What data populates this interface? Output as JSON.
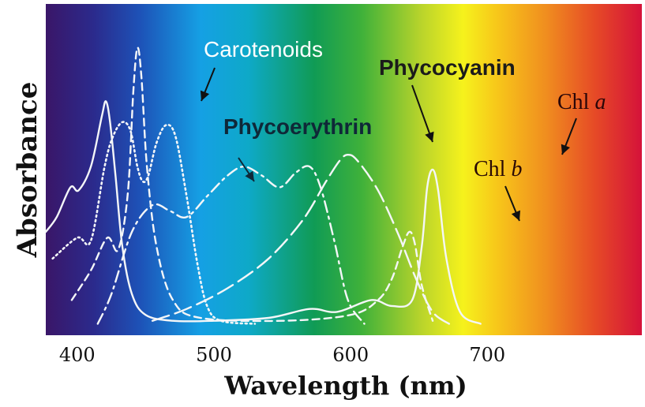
{
  "chart_data": {
    "type": "line",
    "xlabel": "Wavelength (nm)",
    "ylabel": "Absorbance",
    "xlim": [
      377,
      813
    ],
    "ylim": [
      0,
      1
    ],
    "x_ticks": [
      {
        "value": 400,
        "label": "400"
      },
      {
        "value": 500,
        "label": "500"
      },
      {
        "value": 600,
        "label": "600"
      },
      {
        "value": 700,
        "label": "700"
      }
    ],
    "background": "visible-spectrum gradient",
    "series": [
      {
        "name": "Chl a",
        "line_style": "solid",
        "points": [
          [
            377,
            0.33
          ],
          [
            385,
            0.38
          ],
          [
            395,
            0.48
          ],
          [
            401,
            0.47
          ],
          [
            410,
            0.55
          ],
          [
            418,
            0.72
          ],
          [
            421,
            0.77
          ],
          [
            424,
            0.7
          ],
          [
            428,
            0.52
          ],
          [
            433,
            0.28
          ],
          [
            440,
            0.12
          ],
          [
            450,
            0.05
          ],
          [
            470,
            0.03
          ],
          [
            500,
            0.03
          ],
          [
            540,
            0.04
          ],
          [
            570,
            0.07
          ],
          [
            590,
            0.06
          ],
          [
            615,
            0.1
          ],
          [
            630,
            0.08
          ],
          [
            645,
            0.1
          ],
          [
            652,
            0.28
          ],
          [
            656,
            0.48
          ],
          [
            660,
            0.54
          ],
          [
            664,
            0.47
          ],
          [
            670,
            0.24
          ],
          [
            680,
            0.06
          ],
          [
            695,
            0.02
          ]
        ]
      },
      {
        "name": "Chl b",
        "line_style": "dashed",
        "points": [
          [
            396,
            0.1
          ],
          [
            410,
            0.2
          ],
          [
            422,
            0.31
          ],
          [
            430,
            0.27
          ],
          [
            437,
            0.46
          ],
          [
            441,
            0.8
          ],
          [
            444,
            0.95
          ],
          [
            447,
            0.85
          ],
          [
            451,
            0.55
          ],
          [
            458,
            0.28
          ],
          [
            470,
            0.1
          ],
          [
            490,
            0.04
          ],
          [
            550,
            0.03
          ],
          [
            600,
            0.05
          ],
          [
            620,
            0.1
          ],
          [
            630,
            0.17
          ],
          [
            638,
            0.28
          ],
          [
            643,
            0.33
          ],
          [
            647,
            0.29
          ],
          [
            652,
            0.15
          ],
          [
            660,
            0.03
          ]
        ]
      },
      {
        "name": "Carotenoids",
        "line_style": "dotted",
        "points": [
          [
            382,
            0.24
          ],
          [
            400,
            0.31
          ],
          [
            410,
            0.3
          ],
          [
            420,
            0.55
          ],
          [
            426,
            0.65
          ],
          [
            433,
            0.7
          ],
          [
            439,
            0.67
          ],
          [
            444,
            0.55
          ],
          [
            448,
            0.5
          ],
          [
            452,
            0.52
          ],
          [
            458,
            0.63
          ],
          [
            465,
            0.69
          ],
          [
            472,
            0.65
          ],
          [
            480,
            0.45
          ],
          [
            488,
            0.22
          ],
          [
            495,
            0.08
          ],
          [
            505,
            0.03
          ],
          [
            530,
            0.02
          ]
        ]
      },
      {
        "name": "Phycoerythrin",
        "line_style": "dash-dot",
        "points": [
          [
            415,
            0.02
          ],
          [
            425,
            0.12
          ],
          [
            440,
            0.33
          ],
          [
            455,
            0.42
          ],
          [
            468,
            0.4
          ],
          [
            480,
            0.38
          ],
          [
            495,
            0.45
          ],
          [
            510,
            0.52
          ],
          [
            522,
            0.55
          ],
          [
            535,
            0.52
          ],
          [
            548,
            0.48
          ],
          [
            560,
            0.53
          ],
          [
            570,
            0.55
          ],
          [
            578,
            0.48
          ],
          [
            588,
            0.3
          ],
          [
            598,
            0.1
          ],
          [
            610,
            0.02
          ]
        ]
      },
      {
        "name": "Phycocyanin",
        "line_style": "long-dash",
        "points": [
          [
            455,
            0.03
          ],
          [
            480,
            0.07
          ],
          [
            510,
            0.14
          ],
          [
            540,
            0.24
          ],
          [
            565,
            0.37
          ],
          [
            582,
            0.5
          ],
          [
            592,
            0.57
          ],
          [
            598,
            0.59
          ],
          [
            605,
            0.57
          ],
          [
            620,
            0.47
          ],
          [
            635,
            0.32
          ],
          [
            648,
            0.17
          ],
          [
            660,
            0.06
          ],
          [
            672,
            0.02
          ]
        ]
      }
    ],
    "annotations": [
      {
        "label": "Carotenoids",
        "style": "sans-white"
      },
      {
        "label": "Phycocyanin",
        "style": "sans-bold-dark"
      },
      {
        "label": "Phycoerythrin",
        "style": "sans-bold-dark"
      },
      {
        "label_main": "Chl ",
        "label_italic": "a",
        "style": "serif-dark"
      },
      {
        "label_main": "Chl ",
        "label_italic": "b",
        "style": "serif-dark"
      }
    ]
  }
}
